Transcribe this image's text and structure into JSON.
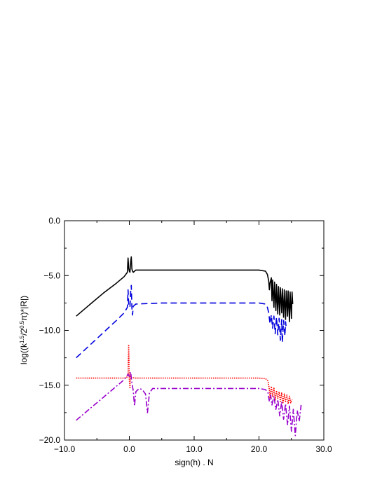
{
  "chart_data": {
    "type": "line",
    "title": "",
    "xlabel": "sign(h) . N",
    "ylabel": "log((k^1.5/2^0.5π)*|R|)",
    "ylabel_parts": {
      "pre": "log((k",
      "sup1": "1.5",
      "mid": "/2",
      "sup2": "0.5",
      "post": "π)*|R|)"
    },
    "xlim": [
      -10,
      30
    ],
    "ylim": [
      -20,
      0
    ],
    "xticks": [
      "−10.0",
      "0.0",
      "10.0",
      "20.0",
      "30.0"
    ],
    "xtick_values": [
      -10,
      0,
      10,
      20,
      30
    ],
    "yticks": [
      "0.0",
      "−5.0",
      "−10.0",
      "−15.0",
      "−20.0"
    ],
    "ytick_values": [
      0,
      -5,
      -10,
      -15,
      -20
    ],
    "grid": false,
    "legend": "none",
    "series": [
      {
        "color": "#000000",
        "style": "solid",
        "points": [
          [
            -8.2,
            -8.7
          ],
          [
            -6,
            -7.6
          ],
          [
            -4,
            -6.6
          ],
          [
            -2,
            -5.7
          ],
          [
            -0.8,
            -5.1
          ],
          [
            -0.3,
            -4.7
          ],
          [
            -0.2,
            -3.4
          ],
          [
            -0.1,
            -4.3
          ],
          [
            0,
            -4.6
          ],
          [
            0.1,
            -4.7
          ],
          [
            0.2,
            -3.8
          ],
          [
            0.3,
            -3.3
          ],
          [
            0.4,
            -4.4
          ],
          [
            0.5,
            -4.6
          ],
          [
            0.6,
            -4.7
          ],
          [
            1,
            -4.5
          ],
          [
            5,
            -4.5
          ],
          [
            10,
            -4.5
          ],
          [
            15,
            -4.5
          ],
          [
            20,
            -4.5
          ],
          [
            21,
            -4.6
          ],
          [
            21.3,
            -4.9
          ],
          [
            21.5,
            -5.5
          ],
          [
            21.6,
            -6.3
          ],
          [
            21.7,
            -5.7
          ],
          [
            21.9,
            -5.2
          ],
          [
            22,
            -7.3
          ],
          [
            22.1,
            -5.4
          ],
          [
            22.3,
            -7.9
          ],
          [
            22.4,
            -5.6
          ],
          [
            22.6,
            -8.2
          ],
          [
            22.7,
            -5.8
          ],
          [
            22.9,
            -8.5
          ],
          [
            23,
            -6.0
          ],
          [
            23.2,
            -8.6
          ],
          [
            23.3,
            -6.1
          ],
          [
            23.5,
            -8.4
          ],
          [
            23.6,
            -6.2
          ],
          [
            23.8,
            -8.8
          ],
          [
            23.9,
            -6.3
          ],
          [
            24.1,
            -9.0
          ],
          [
            24.2,
            -6.4
          ],
          [
            24.4,
            -8.7
          ],
          [
            24.5,
            -6.4
          ],
          [
            24.7,
            -9.2
          ],
          [
            24.8,
            -6.5
          ],
          [
            25,
            -8.9
          ],
          [
            25.1,
            -6.5
          ],
          [
            25.2,
            -7.6
          ]
        ]
      },
      {
        "color": "#0000dd",
        "style": "dashed",
        "points": [
          [
            -8.2,
            -12.5
          ],
          [
            -6,
            -11.3
          ],
          [
            -4,
            -10.2
          ],
          [
            -2,
            -9.1
          ],
          [
            -0.8,
            -8.4
          ],
          [
            -0.3,
            -7.9
          ],
          [
            -0.2,
            -6.3
          ],
          [
            -0.1,
            -7.6
          ],
          [
            0.1,
            -7.9
          ],
          [
            0.2,
            -6.5
          ],
          [
            0.3,
            -5.9
          ],
          [
            0.4,
            -8.0
          ],
          [
            0.5,
            -8.6
          ],
          [
            0.6,
            -7.8
          ],
          [
            1,
            -7.6
          ],
          [
            5,
            -7.5
          ],
          [
            10,
            -7.5
          ],
          [
            15,
            -7.5
          ],
          [
            20,
            -7.5
          ],
          [
            21,
            -7.6
          ],
          [
            21.3,
            -7.9
          ],
          [
            21.5,
            -8.4
          ],
          [
            21.7,
            -9.4
          ],
          [
            21.9,
            -8.6
          ],
          [
            22.1,
            -9.8
          ],
          [
            22.3,
            -8.7
          ],
          [
            22.5,
            -10.3
          ],
          [
            22.7,
            -8.8
          ],
          [
            22.9,
            -10.4
          ],
          [
            23.1,
            -8.9
          ],
          [
            23.3,
            -10.9
          ],
          [
            23.5,
            -9.0
          ],
          [
            23.6,
            -11.1
          ],
          [
            23.8,
            -9.1
          ],
          [
            24,
            -10.5
          ],
          [
            24.1,
            -9.2
          ],
          [
            24.2,
            -9.8
          ]
        ]
      },
      {
        "color": "#ff0000",
        "style": "dotted",
        "points": [
          [
            -8.2,
            -14.35
          ],
          [
            -4,
            -14.35
          ],
          [
            -1,
            -14.35
          ],
          [
            -0.4,
            -14.3
          ],
          [
            -0.2,
            -13.9
          ],
          [
            -0.1,
            -11.3
          ],
          [
            0,
            -14.5
          ],
          [
            0.1,
            -15.3
          ],
          [
            0.2,
            -14.0
          ],
          [
            0.3,
            -14.3
          ],
          [
            1,
            -14.35
          ],
          [
            5,
            -14.35
          ],
          [
            10,
            -14.35
          ],
          [
            15,
            -14.35
          ],
          [
            20,
            -14.35
          ],
          [
            21,
            -14.4
          ],
          [
            21.4,
            -14.6
          ],
          [
            21.6,
            -15.4
          ],
          [
            21.7,
            -16.2
          ],
          [
            21.9,
            -15.1
          ],
          [
            22.1,
            -16.0
          ],
          [
            22.3,
            -15.2
          ],
          [
            22.5,
            -16.4
          ],
          [
            22.7,
            -15.5
          ],
          [
            22.9,
            -16.2
          ],
          [
            23.1,
            -15.6
          ],
          [
            23.3,
            -16.5
          ],
          [
            23.5,
            -15.7
          ],
          [
            23.7,
            -16.6
          ],
          [
            23.9,
            -15.8
          ],
          [
            24.1,
            -16.5
          ],
          [
            24.3,
            -15.9
          ],
          [
            24.5,
            -16.7
          ],
          [
            24.7,
            -16.0
          ],
          [
            24.9,
            -16.6
          ],
          [
            25.1,
            -16.3
          ]
        ]
      },
      {
        "color": "#9900cc",
        "style": "dashdot",
        "points": [
          [
            -8.2,
            -18.2
          ],
          [
            -6,
            -17.1
          ],
          [
            -4,
            -16.1
          ],
          [
            -2,
            -15.1
          ],
          [
            -0.8,
            -14.5
          ],
          [
            -0.4,
            -14.2
          ],
          [
            -0.2,
            -14.0
          ],
          [
            0,
            -14.2
          ],
          [
            0.2,
            -13.8
          ],
          [
            0.4,
            -14.8
          ],
          [
            0.6,
            -15.5
          ],
          [
            0.8,
            -16.9
          ],
          [
            1,
            -15.6
          ],
          [
            1.5,
            -15.3
          ],
          [
            2,
            -15.4
          ],
          [
            2.5,
            -15.8
          ],
          [
            2.8,
            -17.5
          ],
          [
            3.1,
            -15.7
          ],
          [
            3.6,
            -15.3
          ],
          [
            5,
            -15.3
          ],
          [
            10,
            -15.3
          ],
          [
            15,
            -15.3
          ],
          [
            20,
            -15.3
          ],
          [
            21,
            -15.4
          ],
          [
            21.4,
            -15.7
          ],
          [
            21.6,
            -16.5
          ],
          [
            21.8,
            -15.9
          ],
          [
            22,
            -16.8
          ],
          [
            22.3,
            -16.0
          ],
          [
            22.6,
            -17.2
          ],
          [
            22.9,
            -16.3
          ],
          [
            23.2,
            -17.8
          ],
          [
            23.5,
            -16.5
          ],
          [
            23.8,
            -18.1
          ],
          [
            24.1,
            -16.7
          ],
          [
            24.4,
            -18.6
          ],
          [
            24.7,
            -16.9
          ],
          [
            25,
            -19.2
          ],
          [
            25.3,
            -17.2
          ],
          [
            25.6,
            -19.6
          ],
          [
            25.9,
            -17.3
          ],
          [
            26.2,
            -18.3
          ],
          [
            26.5,
            -16.8
          ]
        ]
      }
    ]
  }
}
